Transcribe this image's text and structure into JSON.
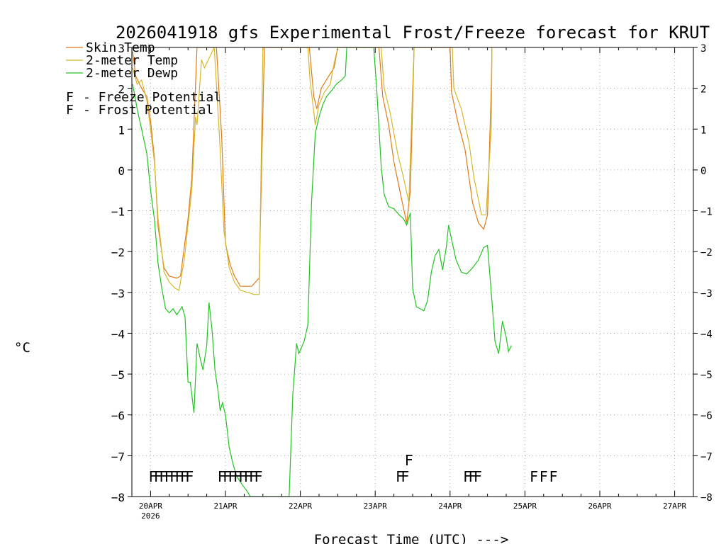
{
  "chart_data": {
    "type": "line",
    "title": "2026041918 gfs Experimental Frost/Freeze forecast for KRUT",
    "xlabel": "Forecast Time (UTC) --->",
    "ylabel": "°C",
    "x_unit": "days since 2026-04-20 00Z",
    "xlim": [
      -0.25,
      7.25
    ],
    "ylim": [
      -8,
      3
    ],
    "yticks": [
      -8,
      -7,
      -6,
      -5,
      -4,
      -3,
      -2,
      -1,
      0,
      1,
      2,
      3
    ],
    "xticks": [
      {
        "x": 0,
        "label": "20APR",
        "sublabel": "2026"
      },
      {
        "x": 1,
        "label": "21APR"
      },
      {
        "x": 2,
        "label": "22APR"
      },
      {
        "x": 3,
        "label": "23APR"
      },
      {
        "x": 4,
        "label": "24APR"
      },
      {
        "x": 5,
        "label": "25APR"
      },
      {
        "x": 6,
        "label": "26APR"
      },
      {
        "x": 7,
        "label": "27APR"
      }
    ],
    "grid": true,
    "legend_position": "top-left",
    "series": [
      {
        "name": "Skin Temp",
        "color": "#e07b1a",
        "points": [
          [
            -0.24,
            2.9
          ],
          [
            -0.2,
            2.3
          ],
          [
            -0.12,
            2.0
          ],
          [
            -0.05,
            1.8
          ],
          [
            0.0,
            1.2
          ],
          [
            0.05,
            0.3
          ],
          [
            0.1,
            -1.4
          ],
          [
            0.18,
            -2.4
          ],
          [
            0.25,
            -2.6
          ],
          [
            0.35,
            -2.65
          ],
          [
            0.4,
            -2.6
          ],
          [
            0.5,
            -1.2
          ],
          [
            0.55,
            -0.2
          ],
          [
            0.62,
            3.0
          ],
          [
            0.88,
            3.0
          ],
          [
            0.95,
            0.8
          ],
          [
            1.0,
            -1.8
          ],
          [
            1.06,
            -2.3
          ],
          [
            1.12,
            -2.6
          ],
          [
            1.2,
            -2.85
          ],
          [
            1.35,
            -2.85
          ],
          [
            1.45,
            -2.65
          ],
          [
            1.52,
            3.0
          ],
          [
            2.12,
            3.0
          ],
          [
            2.18,
            1.8
          ],
          [
            2.22,
            1.5
          ],
          [
            2.28,
            2.0
          ],
          [
            2.38,
            2.3
          ],
          [
            2.45,
            2.5
          ],
          [
            2.5,
            3.0
          ],
          [
            3.05,
            3.0
          ],
          [
            3.1,
            1.8
          ],
          [
            3.18,
            1.1
          ],
          [
            3.25,
            0.2
          ],
          [
            3.35,
            -0.7
          ],
          [
            3.42,
            -1.3
          ],
          [
            3.47,
            -0.5
          ],
          [
            3.52,
            3.0
          ],
          [
            4.0,
            3.0
          ],
          [
            4.02,
            1.9
          ],
          [
            4.1,
            1.2
          ],
          [
            4.2,
            0.5
          ],
          [
            4.3,
            -0.8
          ],
          [
            4.38,
            -1.3
          ],
          [
            4.45,
            -1.45
          ],
          [
            4.5,
            -1.1
          ],
          [
            4.55,
            2.0
          ],
          [
            4.56,
            3.0
          ]
        ]
      },
      {
        "name": "2-meter Temp",
        "color": "#d4b82a",
        "points": [
          [
            -0.24,
            2.5
          ],
          [
            -0.18,
            2.1
          ],
          [
            -0.12,
            2.2
          ],
          [
            -0.05,
            1.7
          ],
          [
            0.0,
            1.0
          ],
          [
            0.05,
            0.2
          ],
          [
            0.1,
            -1.2
          ],
          [
            0.18,
            -2.5
          ],
          [
            0.25,
            -2.75
          ],
          [
            0.33,
            -2.9
          ],
          [
            0.38,
            -2.95
          ],
          [
            0.45,
            -2.2
          ],
          [
            0.55,
            -0.5
          ],
          [
            0.6,
            1.3
          ],
          [
            0.62,
            1.1
          ],
          [
            0.68,
            2.7
          ],
          [
            0.72,
            2.5
          ],
          [
            0.85,
            3.0
          ],
          [
            0.92,
            0.8
          ],
          [
            0.98,
            -1.5
          ],
          [
            1.05,
            -2.4
          ],
          [
            1.12,
            -2.75
          ],
          [
            1.2,
            -2.95
          ],
          [
            1.3,
            -3.0
          ],
          [
            1.38,
            -3.05
          ],
          [
            1.45,
            -3.05
          ],
          [
            1.5,
            3.0
          ],
          [
            2.1,
            3.0
          ],
          [
            2.13,
            2.2
          ],
          [
            2.2,
            1.1
          ],
          [
            2.25,
            1.6
          ],
          [
            2.32,
            1.9
          ],
          [
            2.4,
            2.1
          ],
          [
            2.45,
            2.6
          ],
          [
            2.5,
            3.0
          ],
          [
            3.08,
            3.0
          ],
          [
            3.12,
            2.0
          ],
          [
            3.2,
            1.4
          ],
          [
            3.3,
            0.4
          ],
          [
            3.38,
            -0.2
          ],
          [
            3.45,
            -0.8
          ],
          [
            3.5,
            2.0
          ],
          [
            3.52,
            3.0
          ],
          [
            4.03,
            3.0
          ],
          [
            4.05,
            2.0
          ],
          [
            4.15,
            1.5
          ],
          [
            4.25,
            0.7
          ],
          [
            4.32,
            -0.2
          ],
          [
            4.42,
            -1.1
          ],
          [
            4.48,
            -1.1
          ],
          [
            4.55,
            1.0
          ],
          [
            4.56,
            3.0
          ]
        ]
      },
      {
        "name": "2-meter Dewp",
        "color": "#22c322",
        "points": [
          [
            -0.24,
            2.1
          ],
          [
            -0.18,
            1.5
          ],
          [
            -0.12,
            1.0
          ],
          [
            -0.05,
            0.4
          ],
          [
            0.0,
            -0.5
          ],
          [
            0.05,
            -1.2
          ],
          [
            0.1,
            -2.3
          ],
          [
            0.15,
            -2.9
          ],
          [
            0.2,
            -3.4
          ],
          [
            0.25,
            -3.5
          ],
          [
            0.3,
            -3.4
          ],
          [
            0.35,
            -3.55
          ],
          [
            0.42,
            -3.35
          ],
          [
            0.46,
            -3.6
          ],
          [
            0.5,
            -5.2
          ],
          [
            0.53,
            -5.2
          ],
          [
            0.58,
            -5.95
          ],
          [
            0.62,
            -4.25
          ],
          [
            0.66,
            -4.6
          ],
          [
            0.7,
            -4.9
          ],
          [
            0.75,
            -4.3
          ],
          [
            0.78,
            -3.25
          ],
          [
            0.82,
            -3.9
          ],
          [
            0.86,
            -4.9
          ],
          [
            0.9,
            -5.4
          ],
          [
            0.93,
            -5.9
          ],
          [
            0.96,
            -5.7
          ],
          [
            1.0,
            -6.0
          ],
          [
            1.05,
            -6.8
          ],
          [
            1.1,
            -7.2
          ],
          [
            1.15,
            -7.5
          ],
          [
            1.22,
            -7.7
          ],
          [
            1.3,
            -7.9
          ],
          [
            1.33,
            -8.0
          ],
          [
            1.85,
            -8.0
          ],
          [
            1.9,
            -5.5
          ],
          [
            1.95,
            -4.25
          ],
          [
            1.98,
            -4.5
          ],
          [
            2.05,
            -4.2
          ],
          [
            2.1,
            -3.8
          ],
          [
            2.15,
            -0.8
          ],
          [
            2.2,
            0.9
          ],
          [
            2.25,
            1.3
          ],
          [
            2.3,
            1.6
          ],
          [
            2.35,
            1.8
          ],
          [
            2.42,
            1.95
          ],
          [
            2.48,
            2.1
          ],
          [
            2.55,
            2.2
          ],
          [
            2.6,
            2.3
          ],
          [
            2.62,
            3.0
          ],
          [
            2.98,
            3.0
          ],
          [
            3.02,
            2.0
          ],
          [
            3.08,
            0.1
          ],
          [
            3.12,
            -0.6
          ],
          [
            3.18,
            -0.9
          ],
          [
            3.25,
            -0.95
          ],
          [
            3.32,
            -1.1
          ],
          [
            3.38,
            -1.2
          ],
          [
            3.42,
            -1.35
          ],
          [
            3.47,
            -1.05
          ],
          [
            3.5,
            -2.9
          ],
          [
            3.55,
            -3.35
          ],
          [
            3.65,
            -3.45
          ],
          [
            3.7,
            -3.2
          ],
          [
            3.75,
            -2.5
          ],
          [
            3.8,
            -2.1
          ],
          [
            3.85,
            -1.95
          ],
          [
            3.9,
            -2.45
          ],
          [
            3.95,
            -1.9
          ],
          [
            3.98,
            -1.35
          ],
          [
            4.02,
            -1.7
          ],
          [
            4.08,
            -2.2
          ],
          [
            4.15,
            -2.5
          ],
          [
            4.22,
            -2.55
          ],
          [
            4.3,
            -2.4
          ],
          [
            4.38,
            -2.2
          ],
          [
            4.45,
            -1.9
          ],
          [
            4.5,
            -1.85
          ],
          [
            4.55,
            -3.0
          ],
          [
            4.6,
            -4.2
          ],
          [
            4.65,
            -4.5
          ],
          [
            4.7,
            -3.7
          ],
          [
            4.75,
            -4.1
          ],
          [
            4.78,
            -4.45
          ],
          [
            4.82,
            -4.3
          ]
        ]
      }
    ],
    "markers": [
      {
        "kind": "Freeze Potential",
        "letter": "F",
        "color": "#cc2299",
        "row": -7.5,
        "x": [
          0.03,
          0.1,
          0.17,
          0.24,
          0.31,
          0.38,
          0.45,
          0.52,
          0.95,
          1.02,
          1.09,
          1.16,
          1.23,
          1.3,
          1.37,
          1.44,
          3.33,
          3.4,
          4.23,
          4.3,
          4.37,
          5.12,
          5.25,
          5.38
        ]
      },
      {
        "kind": "Frost Potential",
        "letter": "F",
        "color": "#5561cc",
        "row": -7.1,
        "x": [
          3.45
        ]
      }
    ],
    "legend": [
      {
        "label": "Skin Temp",
        "color": "#e07b1a"
      },
      {
        "label": "2-meter Temp",
        "color": "#d4b82a"
      },
      {
        "label": "2-meter Dewp",
        "color": "#22c322"
      }
    ],
    "legend_markers": [
      {
        "letter": "F",
        "label": "- Freeze Potential",
        "color": "#cc2299"
      },
      {
        "letter": "F",
        "label": "- Frost Potential",
        "color": "#5561cc"
      }
    ]
  }
}
